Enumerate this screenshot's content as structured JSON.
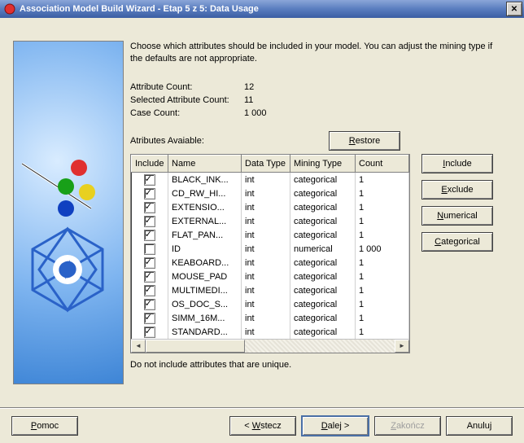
{
  "title": "Association Model Build Wizard - Etap 5 z 5: Data Usage",
  "instructions": "Choose which attributes should be included in your model. You can adjust the mining type if the defaults are not appropriate.",
  "counts": {
    "attr_label": "Attribute Count:",
    "attr_value": "12",
    "sel_label": "Selected Attribute Count:",
    "sel_value": "11",
    "case_label": "Case Count:",
    "case_value": "1 000"
  },
  "attributes_available_label": "Atributes Avaiable:",
  "restore_label": "Restore",
  "restore_ul": "R",
  "columns": {
    "include": "Include",
    "name": "Name",
    "datatype": "Data Type",
    "mining": "Mining Type",
    "count": "Count"
  },
  "rows": [
    {
      "inc": true,
      "name": "BLACK_INK...",
      "dt": "int",
      "mt": "categorical",
      "ct": "1"
    },
    {
      "inc": true,
      "name": "CD_RW_HI...",
      "dt": "int",
      "mt": "categorical",
      "ct": "1"
    },
    {
      "inc": true,
      "name": "EXTENSIO...",
      "dt": "int",
      "mt": "categorical",
      "ct": "1"
    },
    {
      "inc": true,
      "name": "EXTERNAL...",
      "dt": "int",
      "mt": "categorical",
      "ct": "1"
    },
    {
      "inc": true,
      "name": "FLAT_PAN...",
      "dt": "int",
      "mt": "categorical",
      "ct": "1"
    },
    {
      "inc": false,
      "name": "ID",
      "dt": "int",
      "mt": "numerical",
      "ct": "1 000"
    },
    {
      "inc": true,
      "name": "KEABOARD...",
      "dt": "int",
      "mt": "categorical",
      "ct": "1"
    },
    {
      "inc": true,
      "name": "MOUSE_PAD",
      "dt": "int",
      "mt": "categorical",
      "ct": "1"
    },
    {
      "inc": true,
      "name": "MULTIMEDI...",
      "dt": "int",
      "mt": "categorical",
      "ct": "1"
    },
    {
      "inc": true,
      "name": "OS_DOC_S...",
      "dt": "int",
      "mt": "categorical",
      "ct": "1"
    },
    {
      "inc": true,
      "name": "SIMM_16M...",
      "dt": "int",
      "mt": "categorical",
      "ct": "1"
    },
    {
      "inc": true,
      "name": "STANDARD...",
      "dt": "int",
      "mt": "categorical",
      "ct": "1"
    }
  ],
  "side": {
    "include": "Include",
    "include_ul": "I",
    "exclude": "Exclude",
    "exclude_ul": "E",
    "numerical": "Numerical",
    "numerical_ul": "N",
    "categorical": "Categorical",
    "categorical_ul": "C"
  },
  "note": "Do not include attributes that are unique.",
  "footer": {
    "help": "Pomoc",
    "help_ul": "P",
    "back": "< Wstecz",
    "back_ul": "W",
    "next": "Dalej >",
    "next_ul": "D",
    "finish": "Zakończ",
    "finish_ul": "Z",
    "cancel": "Anuluj"
  },
  "colors": {
    "bg": "#ece9d8",
    "title_gradient_top": "#8ba6d8",
    "title_gradient_bot": "#3b5ea3",
    "panel_blue_light": "#d9ecff",
    "panel_blue_dark": "#3e85d6",
    "text": "#000000",
    "disabled": "#9e9e9e"
  },
  "col_widths": {
    "include": 45,
    "name": 90,
    "datatype": 60,
    "mining": 80,
    "count": 50
  }
}
